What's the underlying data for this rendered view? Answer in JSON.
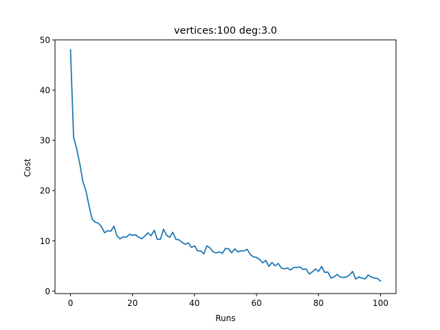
{
  "chart_data": {
    "type": "line",
    "title": "vertices:100 deg:3.0",
    "xlabel": "Runs",
    "ylabel": "Cost",
    "xlim": [
      -5,
      105
    ],
    "ylim": [
      -0.5,
      50
    ],
    "xticks": [
      0,
      20,
      40,
      60,
      80,
      100
    ],
    "yticks": [
      0,
      10,
      20,
      30,
      40,
      50
    ],
    "grid": false,
    "series": [
      {
        "color": "#1f77b4",
        "x": [
          0,
          1,
          2,
          3,
          4,
          5,
          6,
          7,
          8,
          9,
          10,
          11,
          12,
          13,
          14,
          15,
          16,
          17,
          18,
          19,
          20,
          21,
          22,
          23,
          24,
          25,
          26,
          27,
          28,
          29,
          30,
          31,
          32,
          33,
          34,
          35,
          36,
          37,
          38,
          39,
          40,
          41,
          42,
          43,
          44,
          45,
          46,
          47,
          48,
          49,
          50,
          51,
          52,
          53,
          54,
          55,
          56,
          57,
          58,
          59,
          60,
          61,
          62,
          63,
          64,
          65,
          66,
          67,
          68,
          69,
          70,
          71,
          72,
          73,
          74,
          75,
          76,
          77,
          78,
          79,
          80,
          81,
          82,
          83,
          84,
          85,
          86,
          87,
          88,
          89,
          90,
          91,
          92,
          93,
          94,
          95,
          96,
          97,
          98,
          99,
          100
        ],
        "y": [
          48.0,
          30.6,
          28.3,
          25.3,
          21.8,
          19.9,
          16.9,
          14.3,
          13.7,
          13.5,
          12.8,
          11.6,
          12.0,
          11.9,
          12.9,
          11.0,
          10.4,
          10.8,
          10.7,
          11.3,
          11.1,
          11.2,
          10.7,
          10.4,
          11.0,
          11.6,
          11.0,
          12.1,
          10.3,
          10.3,
          12.3,
          11.1,
          10.7,
          11.7,
          10.3,
          10.2,
          9.7,
          9.3,
          9.6,
          8.7,
          9.0,
          8.0,
          8.0,
          7.4,
          9.0,
          8.6,
          7.8,
          7.6,
          7.8,
          7.5,
          8.5,
          8.4,
          7.6,
          8.4,
          7.8,
          8.0,
          8.0,
          8.3,
          7.3,
          6.8,
          6.7,
          6.3,
          5.6,
          6.1,
          4.9,
          5.7,
          5.0,
          5.5,
          4.6,
          4.4,
          4.6,
          4.2,
          4.7,
          4.7,
          4.8,
          4.3,
          4.4,
          3.4,
          3.8,
          4.4,
          3.9,
          4.9,
          3.7,
          3.8,
          2.6,
          2.8,
          3.3,
          2.8,
          2.7,
          2.8,
          3.2,
          3.9,
          2.4,
          2.8,
          2.6,
          2.4,
          3.2,
          2.8,
          2.6,
          2.5,
          2.0
        ]
      }
    ]
  }
}
